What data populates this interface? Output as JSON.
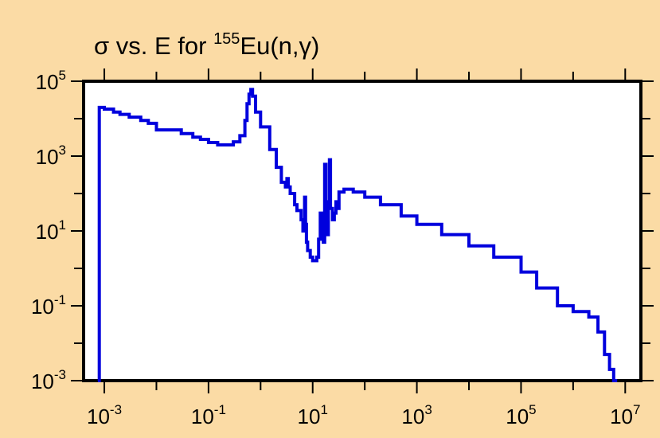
{
  "colors": {
    "background": "#FBDBA5",
    "plot_background": "#FFFFFF",
    "series": "#0000DD",
    "axis": "#000000"
  },
  "chart_data": {
    "type": "line",
    "title": {
      "prefix": "σ vs. E for ",
      "superscript": "155",
      "element": "Eu(n,",
      "particle": "γ",
      "suffix": ")"
    },
    "xlabel": "",
    "ylabel": "",
    "xscale": "log",
    "yscale": "log",
    "xlim": [
      0.0004,
      20000000
    ],
    "ylim": [
      0.001,
      100000
    ],
    "grid": false,
    "legend": "none",
    "x_ticks": [
      {
        "base": "10",
        "exp": "-3",
        "value": 0.001
      },
      {
        "base": "10",
        "exp": "-1",
        "value": 0.1
      },
      {
        "base": "10",
        "exp": "1",
        "value": 10
      },
      {
        "base": "10",
        "exp": "3",
        "value": 1000
      },
      {
        "base": "10",
        "exp": "5",
        "value": 100000
      },
      {
        "base": "10",
        "exp": "7",
        "value": 10000000
      }
    ],
    "y_ticks": [
      {
        "base": "10",
        "exp": "5",
        "value": 100000
      },
      {
        "base": "10",
        "exp": "3",
        "value": 1000
      },
      {
        "base": "10",
        "exp": "1",
        "value": 10
      },
      {
        "base": "10",
        "exp": "-1",
        "value": 0.1
      },
      {
        "base": "10",
        "exp": "-3",
        "value": 0.001
      }
    ],
    "series": [
      {
        "points": [
          [
            0.00075,
            0.001
          ],
          [
            0.0008,
            0.001
          ],
          [
            0.0008,
            20000
          ],
          [
            0.0009,
            20000
          ],
          [
            0.001,
            18000
          ],
          [
            0.0015,
            15000
          ],
          [
            0.002,
            13000
          ],
          [
            0.003,
            11000
          ],
          [
            0.005,
            9000
          ],
          [
            0.007,
            7500
          ],
          [
            0.01,
            5000
          ],
          [
            0.02,
            5000
          ],
          [
            0.03,
            4000
          ],
          [
            0.05,
            3200
          ],
          [
            0.07,
            2800
          ],
          [
            0.1,
            2300
          ],
          [
            0.15,
            2000
          ],
          [
            0.2,
            2000
          ],
          [
            0.3,
            2400
          ],
          [
            0.4,
            3500
          ],
          [
            0.5,
            9000
          ],
          [
            0.55,
            25000
          ],
          [
            0.6,
            45000
          ],
          [
            0.65,
            60000
          ],
          [
            0.7,
            40000
          ],
          [
            0.8,
            15000
          ],
          [
            1.0,
            6000
          ],
          [
            1.5,
            1500
          ],
          [
            2.0,
            500
          ],
          [
            2.5,
            200
          ],
          [
            3.0,
            150
          ],
          [
            3.2,
            250
          ],
          [
            3.4,
            150
          ],
          [
            3.7,
            100
          ],
          [
            4.5,
            50
          ],
          [
            5.0,
            35
          ],
          [
            6.0,
            20
          ],
          [
            6.5,
            10
          ],
          [
            7.0,
            80
          ],
          [
            7.3,
            15
          ],
          [
            7.6,
            5
          ],
          [
            8.0,
            3
          ],
          [
            9.0,
            2
          ],
          [
            10.0,
            1.6
          ],
          [
            12.0,
            2
          ],
          [
            13.0,
            6
          ],
          [
            14.0,
            30
          ],
          [
            15.0,
            10
          ],
          [
            16.0,
            5
          ],
          [
            17.0,
            600
          ],
          [
            18.0,
            20
          ],
          [
            19.0,
            8
          ],
          [
            20.0,
            60
          ],
          [
            21.0,
            800
          ],
          [
            22.0,
            40
          ],
          [
            24.0,
            20
          ],
          [
            26.0,
            30
          ],
          [
            28.0,
            60
          ],
          [
            30.0,
            40
          ],
          [
            32.0,
            110
          ],
          [
            40.0,
            130
          ],
          [
            60.0,
            110
          ],
          [
            100.0,
            80
          ],
          [
            200.0,
            50
          ],
          [
            500.0,
            25
          ],
          [
            1000.0,
            15
          ],
          [
            3000.0,
            8
          ],
          [
            10000.0,
            4
          ],
          [
            30000.0,
            2
          ],
          [
            100000.0,
            0.8
          ],
          [
            200000.0,
            0.3
          ],
          [
            500000.0,
            0.1
          ],
          [
            1000000.0,
            0.07
          ],
          [
            2000000.0,
            0.05
          ],
          [
            3000000.0,
            0.02
          ],
          [
            4000000.0,
            0.005
          ],
          [
            5000000.0,
            0.002
          ],
          [
            6000000.0,
            0.001
          ],
          [
            7000000.0,
            0.001
          ]
        ]
      }
    ]
  }
}
